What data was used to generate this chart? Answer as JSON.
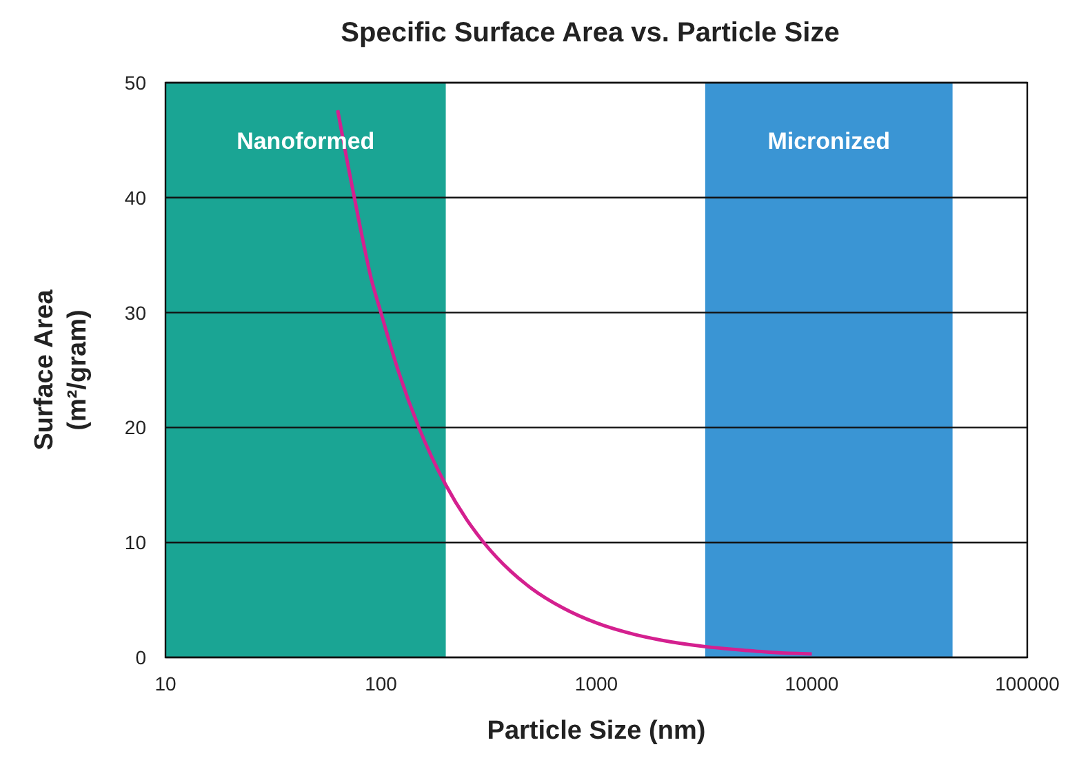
{
  "chart_data": {
    "type": "line",
    "title": "Specific Surface Area vs. Particle Size",
    "xlabel": "Particle Size (nm)",
    "ylabel": "Surface Area (m²/gram)",
    "log": "x",
    "grid": "y",
    "xlim": [
      10,
      100000
    ],
    "xticks": [
      10,
      100,
      1000,
      10000,
      100000
    ],
    "ylim": [
      0,
      50
    ],
    "yticks": [
      0,
      10,
      20,
      30,
      40,
      50
    ],
    "bands": [
      {
        "axis": "x",
        "from": 10,
        "to": 200,
        "label": "Nanoformed",
        "color": "#1aa594"
      },
      {
        "axis": "x",
        "from": 3200,
        "to": 45000,
        "label": "Micronized",
        "color": "#3a95d4"
      }
    ],
    "series": [
      {
        "color": "#d4208f",
        "x": [
          63,
          70,
          80,
          90,
          100,
          120,
          150,
          200,
          250,
          300,
          400,
          500,
          700,
          1000,
          1500,
          2000,
          3000,
          5000,
          7000,
          10000
        ],
        "values": [
          47.6,
          43,
          37.5,
          33,
          30,
          25,
          20,
          15,
          12,
          10,
          7.5,
          6,
          4.3,
          3,
          2,
          1.5,
          1,
          0.6,
          0.4,
          0.3
        ]
      }
    ]
  }
}
